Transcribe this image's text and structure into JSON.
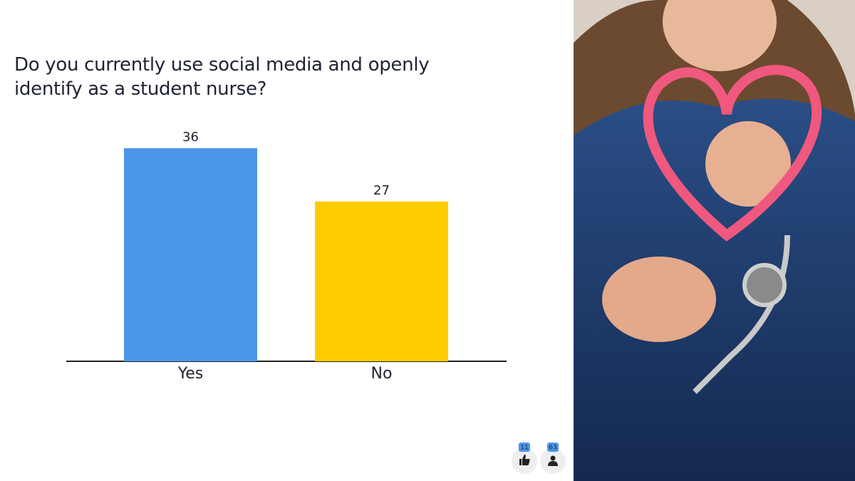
{
  "chart_data": {
    "type": "bar",
    "title": "Do you currently use social media and openly identify as a student nurse?",
    "categories": [
      "Yes",
      "No"
    ],
    "values": [
      36,
      27
    ],
    "colors": [
      "#4c96ea",
      "#ffcc00"
    ]
  },
  "footer": {
    "likes": 11,
    "participants": 63
  }
}
